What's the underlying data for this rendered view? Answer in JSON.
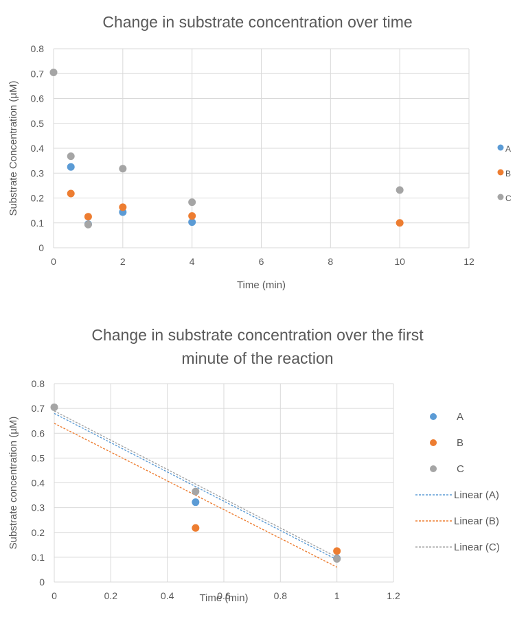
{
  "chart_data": [
    {
      "type": "scatter",
      "title": "Change in substrate concentration over time",
      "xlabel": "Time (min)",
      "ylabel": "Substrate Concentration (µM)",
      "xlim": [
        0,
        12
      ],
      "ylim": [
        0,
        0.8
      ],
      "x_ticks": [
        "0",
        "2",
        "4",
        "6",
        "8",
        "10",
        "12"
      ],
      "y_ticks": [
        "0",
        "0.1",
        "0.2",
        "0.3",
        "0.4",
        "0.5",
        "0.6",
        "0.7",
        "0.8"
      ],
      "grid": true,
      "legend_position": "right",
      "series": [
        {
          "name": "A",
          "color": "#5b9bd5",
          "points": [
            [
              0.5,
              0.325
            ],
            [
              1,
              0.095
            ],
            [
              2,
              0.143
            ],
            [
              4,
              0.103
            ]
          ]
        },
        {
          "name": "B",
          "color": "#ed7d31",
          "points": [
            [
              0.5,
              0.218
            ],
            [
              1,
              0.125
            ],
            [
              2,
              0.163
            ],
            [
              4,
              0.128
            ],
            [
              10,
              0.1
            ]
          ]
        },
        {
          "name": "C",
          "color": "#a5a5a5",
          "points": [
            [
              0,
              0.705
            ],
            [
              0.5,
              0.368
            ],
            [
              1,
              0.093
            ],
            [
              2,
              0.318
            ],
            [
              4,
              0.183
            ],
            [
              10,
              0.232
            ]
          ]
        }
      ]
    },
    {
      "type": "scatter",
      "title": "Change in substrate concentration over the first minute of the reaction",
      "title_lines": [
        "Change in substrate concentration over the first",
        "minute of the reaction"
      ],
      "xlabel": "Time (min)",
      "ylabel": "Substrate concentration (µM)",
      "xlim": [
        0,
        1.2
      ],
      "ylim": [
        0,
        0.8
      ],
      "x_ticks": [
        "0",
        "0.2",
        "0.4",
        "0.6",
        "0.8",
        "1",
        "1.2"
      ],
      "y_ticks": [
        "0",
        "0.1",
        "0.2",
        "0.3",
        "0.4",
        "0.5",
        "0.6",
        "0.7",
        "0.8"
      ],
      "grid": true,
      "legend_position": "right",
      "series": [
        {
          "name": "A",
          "color": "#5b9bd5",
          "points": [
            [
              0.5,
              0.322
            ],
            [
              1,
              0.095
            ]
          ]
        },
        {
          "name": "B",
          "color": "#ed7d31",
          "points": [
            [
              0.5,
              0.218
            ],
            [
              1,
              0.125
            ]
          ]
        },
        {
          "name": "C",
          "color": "#a5a5a5",
          "points": [
            [
              0,
              0.705
            ],
            [
              0.5,
              0.365
            ],
            [
              1,
              0.093
            ]
          ]
        }
      ],
      "trendlines": [
        {
          "name": "Linear (A)",
          "color": "#5b9bd5",
          "x": [
            0,
            1
          ],
          "y": [
            0.68,
            0.09
          ]
        },
        {
          "name": "Linear (B)",
          "color": "#ed7d31",
          "x": [
            0,
            1
          ],
          "y": [
            0.64,
            0.06
          ]
        },
        {
          "name": "Linear (C)",
          "color": "#a5a5a5",
          "x": [
            0,
            1
          ],
          "y": [
            0.69,
            0.1
          ]
        }
      ]
    }
  ]
}
